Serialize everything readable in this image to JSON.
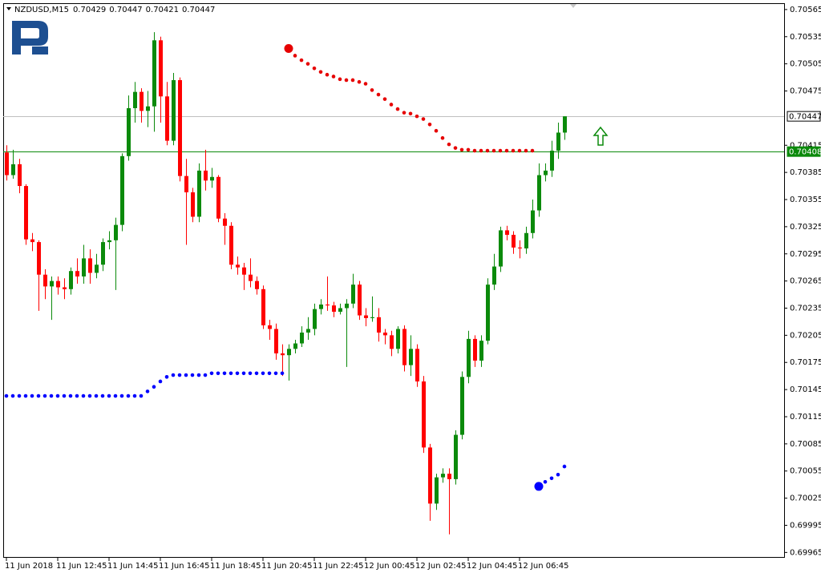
{
  "chart_data": {
    "type": "candlestick",
    "title": "NZDUSD,M15",
    "header_values": [
      0.70429,
      0.70447,
      0.70421,
      0.70447
    ],
    "up_color": "#0b8a0b",
    "down_color": "#ff0000",
    "ylim": [
      0.6996,
      0.70572
    ],
    "yticks": [
      0.69965,
      0.69995,
      0.70025,
      0.70055,
      0.70085,
      0.70115,
      0.70145,
      0.70175,
      0.70205,
      0.70235,
      0.70265,
      0.70295,
      0.70325,
      0.70355,
      0.70385,
      0.70415,
      0.70475,
      0.70505,
      0.70535,
      0.70565
    ],
    "categories": [
      "11 Jun 2018",
      null,
      null,
      null,
      null,
      null,
      null,
      null,
      "11 Jun 12:45",
      null,
      null,
      null,
      null,
      null,
      null,
      null,
      "11 Jun 14:45",
      null,
      null,
      null,
      null,
      null,
      null,
      null,
      "11 Jun 16:45",
      null,
      null,
      null,
      null,
      null,
      null,
      null,
      "11 Jun 18:45",
      null,
      null,
      null,
      null,
      null,
      null,
      null,
      "11 Jun 20:45",
      null,
      null,
      null,
      null,
      null,
      null,
      null,
      "11 Jun 22:45",
      null,
      null,
      null,
      null,
      null,
      null,
      null,
      "12 Jun 00:45",
      null,
      null,
      null,
      null,
      null,
      null,
      null,
      "12 Jun 02:45",
      null,
      null,
      null,
      null,
      null,
      null,
      null,
      "12 Jun 04:45",
      null,
      null,
      null,
      null,
      null,
      null,
      null,
      "12 Jun 06:45",
      null,
      null,
      null,
      null,
      null,
      null,
      null
    ],
    "open": [
      0.70407,
      0.70382,
      0.70394,
      0.7037,
      0.70311,
      0.70308,
      0.70272,
      0.70259,
      0.70265,
      0.70258,
      0.70256,
      0.70276,
      0.7027,
      0.7029,
      0.70274,
      0.70283,
      0.70308,
      0.7031,
      0.70327,
      0.70403,
      0.70456,
      0.70474,
      0.70453,
      0.70458,
      0.70531,
      0.70469,
      0.7042,
      0.70487,
      0.70381,
      0.70363,
      0.70336,
      0.70387,
      0.70376,
      0.7038,
      0.70334,
      0.70326,
      0.70283,
      0.7028,
      0.70272,
      0.70265,
      0.70256,
      0.70216,
      0.70212,
      0.70185,
      0.70183,
      0.7019,
      0.70196,
      0.70208,
      0.70212,
      0.70234,
      0.70239,
      0.70238,
      0.70231,
      0.70235,
      0.7024,
      0.70261,
      0.70227,
      0.70224,
      0.70225,
      0.70208,
      0.70205,
      0.7019,
      0.70212,
      0.70172,
      0.7019,
      0.70154,
      0.70081,
      0.70019,
      0.70048,
      0.70052,
      0.70046,
      0.70095,
      0.70159,
      0.70201,
      0.70177,
      0.70199,
      0.70261,
      0.70281,
      0.70321,
      0.70316,
      0.70302,
      0.70301,
      0.70318,
      0.70343,
      0.70382,
      0.70387,
      0.70409,
      0.70429
    ],
    "high": [
      0.70415,
      0.7041,
      0.704,
      0.70372,
      0.70318,
      0.7031,
      0.70278,
      0.7027,
      0.7027,
      0.70268,
      0.7028,
      0.7029,
      0.70305,
      0.703,
      0.70295,
      0.70312,
      0.7032,
      0.70335,
      0.70406,
      0.7047,
      0.70485,
      0.70478,
      0.70475,
      0.7054,
      0.70535,
      0.70485,
      0.70495,
      0.7049,
      0.704,
      0.70368,
      0.70395,
      0.7041,
      0.7039,
      0.70382,
      0.7034,
      0.7033,
      0.70292,
      0.70285,
      0.7029,
      0.7027,
      0.7026,
      0.70222,
      0.70218,
      0.70195,
      0.70195,
      0.702,
      0.70215,
      0.70225,
      0.7024,
      0.70245,
      0.7027,
      0.70242,
      0.7024,
      0.70245,
      0.70273,
      0.70265,
      0.70235,
      0.70248,
      0.70235,
      0.70212,
      0.7021,
      0.70215,
      0.70216,
      0.70205,
      0.70195,
      0.7016,
      0.70085,
      0.70052,
      0.70058,
      0.70058,
      0.701,
      0.70165,
      0.7021,
      0.70205,
      0.70205,
      0.70268,
      0.70295,
      0.70325,
      0.70326,
      0.7032,
      0.7031,
      0.70325,
      0.70355,
      0.70395,
      0.70395,
      0.7042,
      0.7044,
      0.70447
    ],
    "low": [
      0.70376,
      0.70378,
      0.70362,
      0.70305,
      0.70298,
      0.70232,
      0.70245,
      0.70222,
      0.7025,
      0.70245,
      0.7025,
      0.70262,
      0.70262,
      0.70262,
      0.70268,
      0.70276,
      0.703,
      0.70255,
      0.7032,
      0.70398,
      0.7044,
      0.7044,
      0.70435,
      0.7043,
      0.7044,
      0.70415,
      0.70415,
      0.70375,
      0.70305,
      0.7033,
      0.7033,
      0.70365,
      0.70368,
      0.7033,
      0.70305,
      0.70278,
      0.70272,
      0.70255,
      0.70258,
      0.7025,
      0.70212,
      0.702,
      0.70178,
      0.7016,
      0.70155,
      0.70185,
      0.70192,
      0.702,
      0.70205,
      0.70228,
      0.70232,
      0.70225,
      0.70228,
      0.7017,
      0.70235,
      0.70222,
      0.70215,
      0.7022,
      0.70198,
      0.70195,
      0.70182,
      0.70185,
      0.70165,
      0.7016,
      0.70148,
      0.70075,
      0.7,
      0.70012,
      0.70042,
      0.69985,
      0.7004,
      0.7009,
      0.70152,
      0.7017,
      0.7017,
      0.70195,
      0.70255,
      0.70275,
      0.7031,
      0.70295,
      0.7029,
      0.70295,
      0.70312,
      0.70336,
      0.70375,
      0.7038,
      0.704,
      0.70421
    ],
    "close": [
      0.70382,
      0.70394,
      0.7037,
      0.70311,
      0.70308,
      0.70272,
      0.70259,
      0.70265,
      0.70258,
      0.70256,
      0.70276,
      0.7027,
      0.7029,
      0.70274,
      0.70283,
      0.70308,
      0.7031,
      0.70327,
      0.70403,
      0.70456,
      0.70474,
      0.70453,
      0.70458,
      0.70531,
      0.70469,
      0.7042,
      0.70487,
      0.70381,
      0.70363,
      0.70336,
      0.70387,
      0.70376,
      0.7038,
      0.70334,
      0.70326,
      0.70283,
      0.7028,
      0.70272,
      0.70265,
      0.70256,
      0.70216,
      0.70212,
      0.70185,
      0.70183,
      0.7019,
      0.70196,
      0.70208,
      0.70212,
      0.70234,
      0.70239,
      0.70238,
      0.70231,
      0.70235,
      0.7024,
      0.70261,
      0.70227,
      0.70224,
      0.70225,
      0.70208,
      0.70205,
      0.7019,
      0.70212,
      0.70172,
      0.7019,
      0.70154,
      0.70081,
      0.70019,
      0.70048,
      0.70052,
      0.70046,
      0.70095,
      0.70159,
      0.70201,
      0.70177,
      0.70199,
      0.70261,
      0.70281,
      0.70321,
      0.70316,
      0.70302,
      0.70301,
      0.70318,
      0.70343,
      0.70382,
      0.70387,
      0.70409,
      0.70429,
      0.70447
    ],
    "sar_series": [
      {
        "color": "#0000ff",
        "values": [
          0.70138,
          0.70138,
          0.70138,
          0.70138,
          0.70138,
          0.70138,
          0.70138,
          0.70138,
          0.70138,
          0.70138,
          0.70138,
          0.70138,
          0.70138,
          0.70138,
          0.70138,
          0.70138,
          0.70138,
          0.70138,
          0.70138,
          0.70138,
          0.70138,
          0.70138,
          0.70143,
          0.70148,
          0.70154,
          0.70159,
          0.70161,
          0.70161,
          0.70161,
          0.70161,
          0.70161,
          0.70161,
          0.70163,
          0.70163,
          0.70163,
          0.70163,
          0.70163,
          0.70163,
          0.70163,
          0.70163,
          0.70163,
          0.70163,
          0.70163,
          0.70163,
          null,
          null,
          null,
          null,
          null,
          null,
          null,
          null,
          null,
          null,
          null,
          null,
          null,
          null,
          null,
          null,
          null,
          null,
          null,
          null,
          null,
          null,
          null,
          null,
          null,
          null,
          null,
          null,
          null,
          null,
          null,
          null,
          null,
          null,
          null,
          null,
          null,
          null,
          null,
          0.70038,
          0.70043,
          0.70047,
          0.70051,
          0.7006
        ]
      },
      {
        "color": "#e60000",
        "values": [
          null,
          null,
          null,
          null,
          null,
          null,
          null,
          null,
          null,
          null,
          null,
          null,
          null,
          null,
          null,
          null,
          null,
          null,
          null,
          null,
          null,
          null,
          null,
          null,
          null,
          null,
          null,
          null,
          null,
          null,
          null,
          null,
          null,
          null,
          null,
          null,
          null,
          null,
          null,
          null,
          null,
          null,
          null,
          null,
          0.70522,
          0.70514,
          0.70509,
          0.70505,
          0.705,
          0.70496,
          0.70493,
          0.70491,
          0.70488,
          0.70487,
          0.70487,
          0.70485,
          0.70483,
          0.70476,
          0.70471,
          0.70466,
          0.7046,
          0.70455,
          0.70451,
          0.7045,
          0.70447,
          0.70444,
          0.70438,
          0.70431,
          0.70423,
          0.70416,
          0.70412,
          0.7041,
          0.7041,
          0.70409,
          0.70409,
          0.70409,
          0.70409,
          0.70409,
          0.70409,
          0.70409,
          0.70409,
          0.70409,
          0.70409,
          null,
          null,
          null,
          null,
          null
        ]
      }
    ],
    "bid_line": {
      "value": 0.70447,
      "color": "#c0c0c0"
    },
    "level_line": {
      "value": 0.70408,
      "color": "#0b8a0b"
    }
  }
}
